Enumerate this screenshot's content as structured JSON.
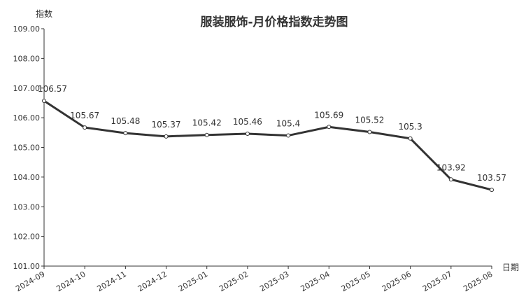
{
  "chart_data": {
    "type": "line",
    "title": "服装服饰-月价格指数走势图",
    "y_label": "指数",
    "x_label": "日期",
    "categories": [
      "2024-09",
      "2024-10",
      "2024-11",
      "2024-12",
      "2025-01",
      "2025-02",
      "2025-03",
      "2025-04",
      "2025-05",
      "2025-06",
      "2025-07",
      "2025-08"
    ],
    "values": [
      106.57,
      105.67,
      105.48,
      105.37,
      105.42,
      105.46,
      105.4,
      105.69,
      105.52,
      105.3,
      103.92,
      103.57
    ],
    "color": "#333333",
    "ylim": [
      101,
      109
    ],
    "yticks": [
      {
        "value": 101,
        "label": "101.00"
      },
      {
        "value": 102,
        "label": "102.00"
      },
      {
        "value": 103,
        "label": "103.00"
      },
      {
        "value": 104,
        "label": "104.00"
      },
      {
        "value": 105,
        "label": "105.00"
      },
      {
        "value": 106,
        "label": "106.00"
      },
      {
        "value": 107,
        "label": "107.00"
      },
      {
        "value": 108,
        "label": "108.00"
      },
      {
        "value": 109,
        "label": "109.00"
      }
    ],
    "grid": false
  }
}
